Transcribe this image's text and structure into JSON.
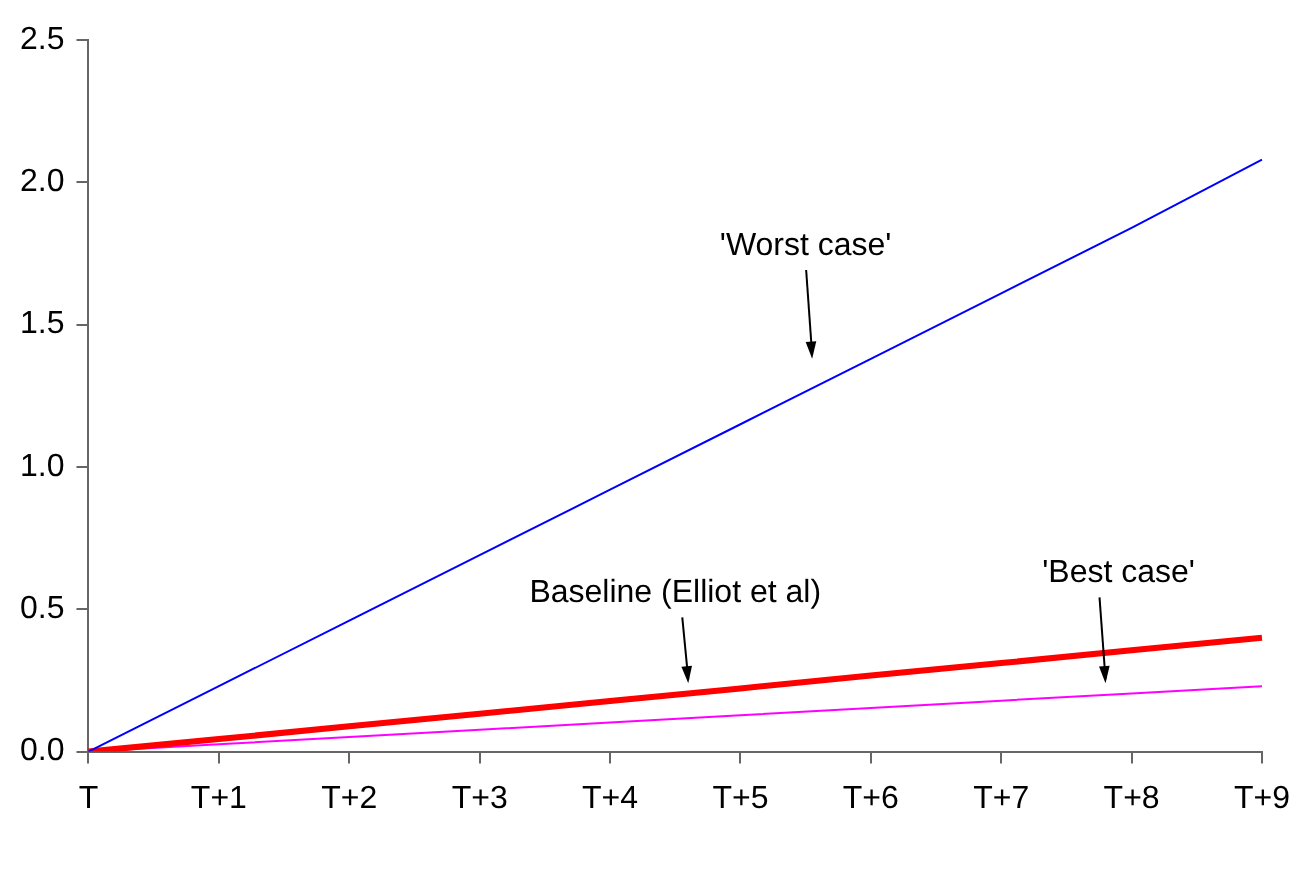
{
  "chart_data": {
    "type": "line",
    "categories": [
      "T",
      "T+1",
      "T+2",
      "T+3",
      "T+4",
      "T+5",
      "T+6",
      "T+7",
      "T+8",
      "T+9"
    ],
    "series": [
      {
        "name": "'Worst case'",
        "color": "#0000ff",
        "values": [
          0,
          0.23,
          0.46,
          0.69,
          0.92,
          1.15,
          1.38,
          1.61,
          1.84,
          2.08
        ]
      },
      {
        "name": "Baseline (Elliot et al)",
        "color": "#ff0000",
        "values": [
          0,
          0.044,
          0.089,
          0.133,
          0.178,
          0.222,
          0.267,
          0.311,
          0.356,
          0.4
        ]
      },
      {
        "name": "'Best case'",
        "color": "#ff00ff",
        "values": [
          0,
          0.026,
          0.051,
          0.077,
          0.102,
          0.128,
          0.153,
          0.179,
          0.204,
          0.23
        ]
      }
    ],
    "ylim": [
      0,
      2.5
    ],
    "yticks": [
      {
        "value": 0,
        "label": "0.0"
      },
      {
        "value": 0.5,
        "label": "0.5"
      },
      {
        "value": 1,
        "label": "1.0"
      },
      {
        "value": 1.5,
        "label": "1.5"
      },
      {
        "value": 2,
        "label": "2.0"
      },
      {
        "value": 2.5,
        "label": "2.5"
      }
    ],
    "grid": false,
    "legend": false,
    "marker": "none",
    "line_style": "solid"
  }
}
